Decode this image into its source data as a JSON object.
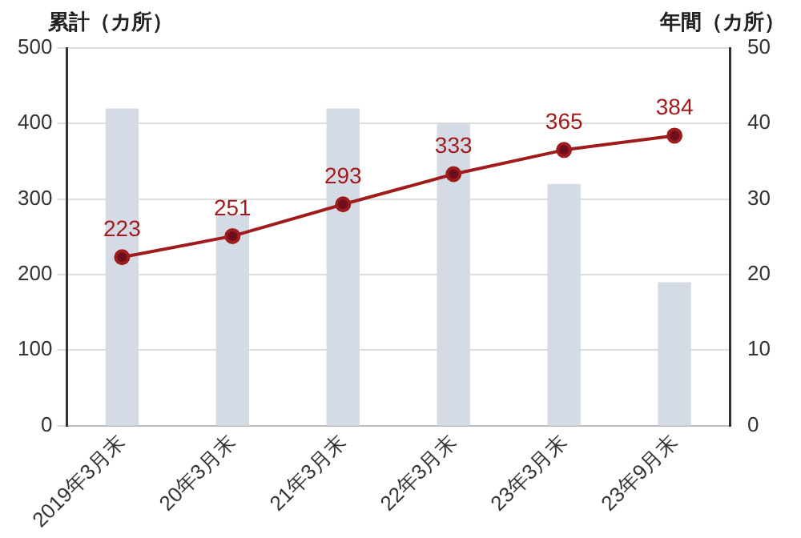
{
  "chart_data": {
    "type": "bar",
    "ylabel": "累計（カ所）",
    "y2label": "年間（カ所）",
    "categories": [
      "2019年3月末",
      "20年3月末",
      "21年3月末",
      "22年3月末",
      "23年3月末",
      "23年9月末"
    ],
    "series": [
      {
        "axis": "y2",
        "color": "#d5dbe5",
        "values": [
          42,
          28,
          42,
          40,
          32,
          19
        ]
      },
      {
        "type": "line",
        "axis": "y",
        "color": "#a01c1c",
        "marker": "circle",
        "values": [
          223,
          251,
          293,
          333,
          365,
          384
        ],
        "value_labels": [
          "223",
          "251",
          "293",
          "333",
          "365",
          "384"
        ]
      }
    ],
    "ylim": [
      0,
      500
    ],
    "yticks": [
      0,
      100,
      200,
      300,
      400,
      500
    ],
    "y2lim": [
      0,
      50
    ],
    "y2ticks": [
      0,
      10,
      20,
      30,
      40,
      50
    ],
    "grid": "y",
    "legend": false
  }
}
